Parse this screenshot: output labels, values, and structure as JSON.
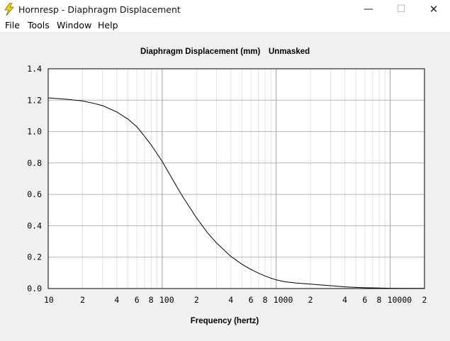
{
  "window": {
    "title": "Hornresp - Diaphragm Displacement",
    "icon": "lightning-bolt-icon",
    "controls": {
      "minimize": "—",
      "maximize": "☐",
      "close": "✕"
    }
  },
  "menu": {
    "items": [
      {
        "label": "File"
      },
      {
        "label": "Tools"
      },
      {
        "label": "Window"
      },
      {
        "label": "Help"
      }
    ]
  },
  "chart_data": {
    "type": "line",
    "title": "Diaphragm Displacement (mm)",
    "subtitle": "Unmasked",
    "xlabel": "Frequency (hertz)",
    "ylabel": "",
    "x_scale": "log",
    "xlim": [
      10,
      20000
    ],
    "ylim": [
      0,
      1.4
    ],
    "grid": true,
    "yticks": [
      "0.0",
      "0.2",
      "0.4",
      "0.6",
      "0.8",
      "1.0",
      "1.2",
      "1.4"
    ],
    "xtick_labels": [
      {
        "value": 10,
        "label": "10"
      },
      {
        "value": 20,
        "label": "2"
      },
      {
        "value": 40,
        "label": "4"
      },
      {
        "value": 60,
        "label": "6"
      },
      {
        "value": 80,
        "label": "8"
      },
      {
        "value": 100,
        "label": "100"
      },
      {
        "value": 200,
        "label": "2"
      },
      {
        "value": 400,
        "label": "4"
      },
      {
        "value": 600,
        "label": "6"
      },
      {
        "value": 800,
        "label": "8"
      },
      {
        "value": 1000,
        "label": "1000"
      },
      {
        "value": 2000,
        "label": "2"
      },
      {
        "value": 4000,
        "label": "4"
      },
      {
        "value": 6000,
        "label": "6"
      },
      {
        "value": 8000,
        "label": "8"
      },
      {
        "value": 10000,
        "label": "10000"
      },
      {
        "value": 20000,
        "label": "2"
      }
    ],
    "series": [
      {
        "color": "#000000",
        "x": [
          10,
          15,
          20,
          25,
          30,
          40,
          50,
          60,
          70,
          80,
          90,
          100,
          120,
          150,
          200,
          250,
          300,
          400,
          500,
          600,
          700,
          800,
          900,
          1000,
          1200,
          1500,
          2000,
          3000,
          4000,
          5000,
          6000,
          8000,
          10000,
          15000,
          20000
        ],
        "y": [
          1.215,
          1.205,
          1.195,
          1.18,
          1.165,
          1.125,
          1.08,
          1.03,
          0.97,
          0.915,
          0.86,
          0.81,
          0.71,
          0.59,
          0.45,
          0.355,
          0.29,
          0.205,
          0.155,
          0.122,
          0.098,
          0.08,
          0.066,
          0.055,
          0.043,
          0.035,
          0.028,
          0.018,
          0.011,
          0.007,
          0.005,
          0.003,
          0.002,
          0.0015,
          0.001
        ]
      }
    ]
  }
}
